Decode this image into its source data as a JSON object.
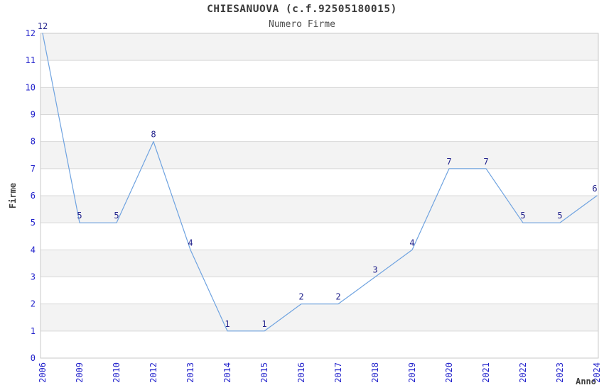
{
  "chart_data": {
    "type": "line",
    "title": "CHIESANUOVA (c.f.92505180015)",
    "subtitle": "Numero Firme",
    "xlabel": "Anno",
    "ylabel": "Firme",
    "categories": [
      "2006",
      "2009",
      "2010",
      "2012",
      "2013",
      "2014",
      "2015",
      "2016",
      "2017",
      "2018",
      "2019",
      "2020",
      "2021",
      "2022",
      "2023",
      "2024"
    ],
    "values": [
      12,
      5,
      5,
      8,
      4,
      1,
      1,
      2,
      2,
      3,
      4,
      7,
      7,
      5,
      5,
      6
    ],
    "ylim": [
      0,
      12
    ],
    "y_ticks": [
      0,
      1,
      2,
      3,
      4,
      5,
      6,
      7,
      8,
      9,
      10,
      11,
      12
    ],
    "grid": "horizontal-only",
    "legend": "none",
    "data_labels": true,
    "x_tick_rotation_deg": 90,
    "colors": {
      "line": "#6fa3e0",
      "data_label": "#23238c",
      "tick_label": "#2323cc",
      "axis_title": "#404040",
      "title": "#3a3a3a",
      "subtitle": "#4d4d4d",
      "band_fill": "#f3f3f3",
      "gridline": "#d8d8d8",
      "plot_border": "#c9c9c9",
      "background": "#ffffff"
    }
  }
}
